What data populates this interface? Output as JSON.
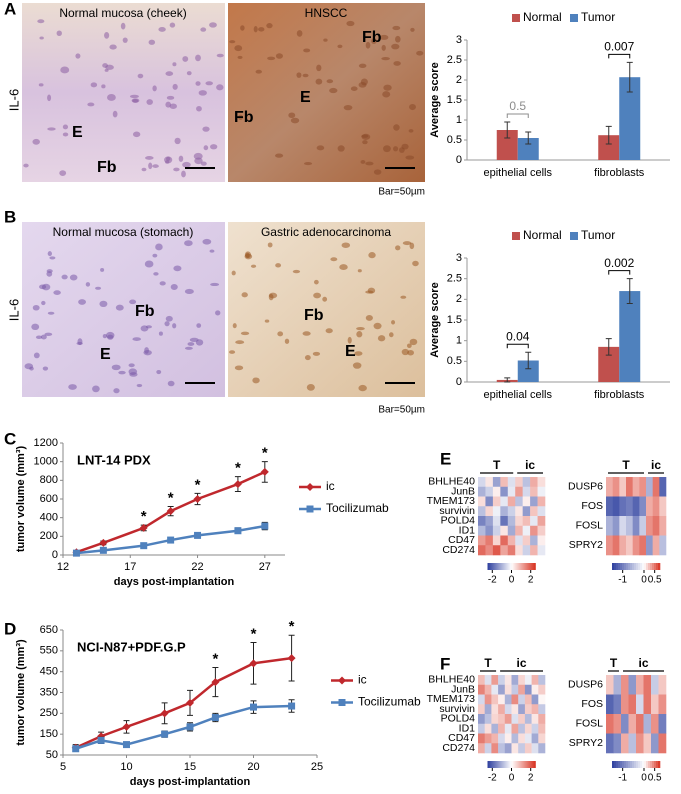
{
  "panel_labels": [
    "A",
    "B",
    "C",
    "D",
    "E",
    "F"
  ],
  "histology": [
    {
      "stain_label": "IL-6",
      "scale_note": "Bar=50µm",
      "images": [
        {
          "title": "Normal mucosa (cheek)",
          "labels": [
            "E",
            "Fb"
          ]
        },
        {
          "title": "HNSCC",
          "labels": [
            "Fb",
            "E",
            "Fb"
          ]
        }
      ]
    },
    {
      "stain_label": "IL-6",
      "scale_note": "Bar=50µm",
      "images": [
        {
          "title": "Normal mucosa (stomach)",
          "labels": [
            "E",
            "Fb"
          ]
        },
        {
          "title": "Gastric adenocarcinoma",
          "labels": [
            "Fb",
            "E"
          ]
        }
      ]
    }
  ],
  "chart_data": [
    {
      "type": "bar",
      "y_label": "Average score",
      "categories": [
        "epithelial cells",
        "fibroblasts"
      ],
      "series": [
        {
          "name": "Normal",
          "color": "#c0504d",
          "values": [
            0.75,
            0.62
          ],
          "errors": [
            0.2,
            0.22
          ]
        },
        {
          "name": "Tumor",
          "color": "#4f81bd",
          "values": [
            0.55,
            2.07
          ],
          "errors": [
            0.15,
            0.37
          ]
        }
      ],
      "annotations": [
        "0.5",
        "0.007"
      ],
      "annotation_colors": [
        "#8c8c8c",
        "#000000"
      ],
      "ylim": [
        0,
        3
      ],
      "yticks": [
        0,
        0.5,
        1,
        1.5,
        2,
        2.5,
        3
      ],
      "grid": false
    },
    {
      "type": "bar",
      "y_label": "Average score",
      "categories": [
        "epithelial cells",
        "fibroblasts"
      ],
      "series": [
        {
          "name": "Normal",
          "color": "#c0504d",
          "values": [
            0.05,
            0.85
          ],
          "errors": [
            0.05,
            0.2
          ]
        },
        {
          "name": "Tumor",
          "color": "#4f81bd",
          "values": [
            0.52,
            2.2
          ],
          "errors": [
            0.2,
            0.3
          ]
        }
      ],
      "annotations": [
        "0.04",
        "0.002"
      ],
      "annotation_colors": [
        "#000000",
        "#000000"
      ],
      "ylim": [
        0,
        3
      ],
      "yticks": [
        0,
        0.5,
        1,
        1.5,
        2,
        2.5,
        3
      ],
      "grid": false
    },
    {
      "type": "line",
      "title": "LNT-14 PDX",
      "x_label": "days post-implantation",
      "y_label": "tumor volume (mm³)",
      "x": [
        13,
        15,
        18,
        20,
        22,
        25,
        27
      ],
      "series": [
        {
          "name": "ic",
          "color": "#c0282d",
          "marker": "diamond",
          "values": [
            30,
            130,
            290,
            470,
            600,
            760,
            890
          ],
          "errors": [
            10,
            20,
            30,
            50,
            60,
            80,
            110
          ],
          "significance_labels": [
            null,
            null,
            "*",
            "*",
            "*",
            "*",
            "*"
          ]
        },
        {
          "name": "Tocilizumab",
          "color": "#4f81bd",
          "marker": "square",
          "values": [
            20,
            50,
            100,
            160,
            210,
            260,
            310
          ],
          "errors": [
            5,
            10,
            15,
            20,
            20,
            30,
            40
          ]
        }
      ],
      "xlim": [
        12,
        28.5
      ],
      "xticks": [
        12,
        17,
        22,
        27
      ],
      "ylim": [
        0,
        1200
      ],
      "yticks": [
        0,
        200,
        400,
        600,
        800,
        1000,
        1200
      ],
      "grid": false
    },
    {
      "type": "line",
      "title": "NCI-N87+PDF.G.P",
      "x_label": "days post-implantation",
      "y_label": "tumor volume (mm³)",
      "x": [
        6,
        8,
        10,
        13,
        15,
        17,
        20,
        23
      ],
      "series": [
        {
          "name": "ic",
          "color": "#c0282d",
          "marker": "diamond",
          "values": [
            85,
            140,
            185,
            250,
            300,
            400,
            490,
            515
          ],
          "errors": [
            15,
            20,
            30,
            50,
            60,
            70,
            100,
            110
          ],
          "significance_labels": [
            null,
            null,
            null,
            null,
            null,
            "*",
            "*",
            "*"
          ]
        },
        {
          "name": "Tocilizumab",
          "color": "#4f81bd",
          "marker": "square",
          "values": [
            80,
            120,
            100,
            150,
            185,
            230,
            280,
            285
          ],
          "errors": [
            10,
            15,
            10,
            15,
            20,
            20,
            30,
            30
          ]
        }
      ],
      "xlim": [
        5,
        25
      ],
      "xticks": [
        5,
        10,
        15,
        20,
        25
      ],
      "ylim": [
        50,
        650
      ],
      "yticks": [
        50,
        150,
        250,
        350,
        450,
        550,
        650
      ],
      "grid": false
    },
    {
      "type": "heatmap",
      "rows": [
        "BHLHE40",
        "JunB",
        "TMEM173",
        "survivin",
        "POLD4",
        "ID1",
        "CD47",
        "CD274"
      ],
      "columns": [
        "T",
        null,
        null,
        null,
        null,
        "ic",
        null,
        null,
        null
      ],
      "values": [
        [
          -0.5,
          0.3,
          -1.2,
          0.8,
          -0.4,
          0.6,
          -0.8,
          1.0,
          0.4
        ],
        [
          -1.0,
          -0.6,
          0.2,
          -1.4,
          -0.3,
          1.2,
          -0.5,
          0.8,
          -0.2
        ],
        [
          0.4,
          -1.5,
          0.6,
          -0.3,
          1.0,
          -0.8,
          0.2,
          -1.2,
          0.9
        ],
        [
          -0.8,
          0.5,
          -0.2,
          -1.0,
          -0.6,
          0.3,
          -1.3,
          0.7,
          -0.4
        ],
        [
          -1.6,
          -1.2,
          -0.4,
          -1.8,
          -0.9,
          0.5,
          0.8,
          -0.3,
          1.1
        ],
        [
          -0.9,
          -1.4,
          -0.6,
          0.3,
          -1.1,
          0.9,
          -0.2,
          1.3,
          0.6
        ],
        [
          1.2,
          1.6,
          0.5,
          1.8,
          0.9,
          -0.4,
          0.6,
          -1.0,
          0.2
        ],
        [
          1.8,
          1.4,
          2.0,
          1.1,
          1.6,
          0.4,
          -0.6,
          0.9,
          -0.3
        ]
      ],
      "vlim": [
        -2.5,
        2.5
      ],
      "colorbar_ticks": [
        -2,
        0,
        2
      ],
      "colormap": [
        "#2c3e9e",
        "#ffffff",
        "#d7301f"
      ]
    },
    {
      "type": "heatmap",
      "rows": [
        "DUSP6",
        "FOS",
        "FOSL",
        "SPRY2"
      ],
      "columns": [
        "T",
        null,
        null,
        null,
        null,
        null,
        "ic",
        null,
        null
      ],
      "values": [
        [
          0.3,
          0.4,
          0.2,
          0.5,
          0.3,
          0.4,
          -0.6,
          0.5,
          -1.2
        ],
        [
          -1.2,
          -1.3,
          -1.1,
          -1.0,
          -1.2,
          -0.9,
          0.3,
          0.4,
          0.2
        ],
        [
          -0.6,
          -0.8,
          -0.3,
          -0.5,
          -0.9,
          -0.4,
          0.4,
          0.5,
          0.3
        ],
        [
          0.4,
          0.5,
          0.3,
          0.2,
          0.4,
          0.5,
          -0.8,
          0.3,
          -0.5
        ]
      ],
      "vlim": [
        -1.5,
        0.75
      ],
      "colorbar_ticks": [
        -1,
        0,
        0.5
      ],
      "colormap": [
        "#2c3e9e",
        "#ffffff",
        "#d7301f"
      ]
    },
    {
      "type": "heatmap",
      "rows": [
        "BHLHE40",
        "JunB",
        "TMEM173",
        "survivin",
        "POLD4",
        "ID1",
        "CD47",
        "CD274"
      ],
      "columns": [
        "T",
        null,
        null,
        "ic",
        null,
        null,
        null,
        null,
        null,
        null
      ],
      "values": [
        [
          0.8,
          -0.4,
          1.2,
          -0.6,
          0.3,
          -1.1,
          0.5,
          -0.2,
          0.9,
          -0.8
        ],
        [
          1.5,
          0.9,
          -0.3,
          -1.2,
          0.4,
          -0.7,
          1.1,
          -1.4,
          0.2,
          0.6
        ],
        [
          -0.5,
          1.3,
          0.7,
          0.2,
          -1.0,
          1.4,
          -0.6,
          0.8,
          -1.3,
          0.1
        ],
        [
          0.6,
          -1.1,
          0.4,
          1.0,
          -0.5,
          0.3,
          -1.2,
          0.6,
          0.9,
          -0.7
        ],
        [
          -1.3,
          -0.8,
          0.5,
          0.7,
          1.2,
          -0.4,
          0.6,
          -0.9,
          0.3,
          1.0
        ],
        [
          -0.7,
          0.4,
          -1.0,
          0.9,
          -0.3,
          1.1,
          -0.8,
          0.5,
          -0.6,
          0.8
        ],
        [
          1.6,
          1.2,
          0.9,
          -0.5,
          0.2,
          -0.9,
          0.4,
          -0.3,
          -1.1,
          0.5
        ],
        [
          1.0,
          -0.6,
          1.4,
          -0.8,
          -1.2,
          0.3,
          -0.7,
          0.6,
          -0.4,
          -1.0
        ]
      ],
      "vlim": [
        -2.5,
        2.5
      ],
      "colorbar_ticks": [
        -2,
        0,
        2
      ],
      "colormap": [
        "#2c3e9e",
        "#ffffff",
        "#d7301f"
      ]
    },
    {
      "type": "heatmap",
      "rows": [
        "DUSP6",
        "FOS",
        "FOSL",
        "SPRY2"
      ],
      "columns": [
        "T",
        null,
        "ic",
        null,
        null,
        null,
        null,
        null
      ],
      "values": [
        [
          0.2,
          -0.6,
          0.4,
          -0.8,
          0.3,
          0.5,
          -0.4,
          0.2
        ],
        [
          -1.2,
          -1.0,
          0.4,
          0.5,
          -0.3,
          0.5,
          0.2,
          0.4
        ],
        [
          0.5,
          0.4,
          -0.9,
          0.3,
          0.5,
          -0.6,
          0.4,
          -1.0
        ],
        [
          -1.1,
          -0.9,
          0.3,
          -0.5,
          0.4,
          0.2,
          -0.8,
          0.5
        ]
      ],
      "vlim": [
        -1.5,
        0.75
      ],
      "colorbar_ticks": [
        -1,
        0,
        0.5
      ],
      "colormap": [
        "#2c3e9e",
        "#ffffff",
        "#d7301f"
      ]
    }
  ]
}
